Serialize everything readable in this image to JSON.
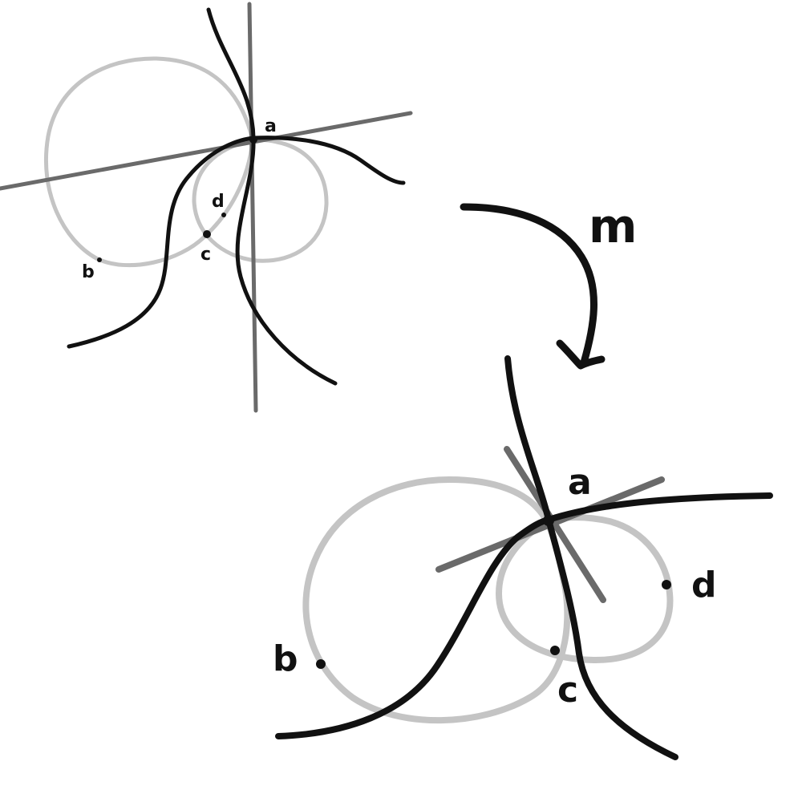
{
  "colors": {
    "background": "#ffffff",
    "ink": "#111111",
    "axis": "#6a6a6a",
    "circle": "#c4c4c4"
  },
  "map": {
    "label": "m"
  },
  "top_figure": {
    "labels": {
      "a": "a",
      "b": "b",
      "c": "c",
      "d": "d"
    }
  },
  "bottom_figure": {
    "labels": {
      "a": "a",
      "b": "b",
      "c": "c",
      "d": "d"
    }
  }
}
